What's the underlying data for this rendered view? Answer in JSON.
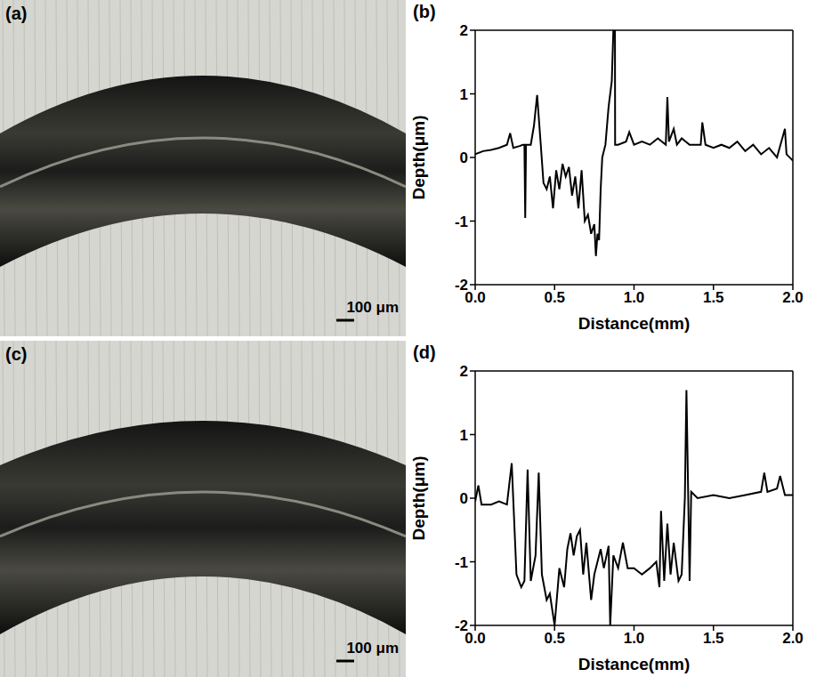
{
  "images": [
    {
      "label": "(a)",
      "scale_bar": "100 μm"
    },
    {
      "label": "(c)",
      "scale_bar": "100 μm"
    }
  ],
  "chart_data": [
    {
      "label": "(b)",
      "type": "line",
      "color": "#000000",
      "xlabel": "Distance(mm)",
      "ylabel": "Depth(μm)",
      "xlim": [
        0,
        2
      ],
      "ylim": [
        -2,
        2
      ],
      "xticks": [
        {
          "value": 0,
          "label": "0.0"
        },
        {
          "value": 0.5,
          "label": "0.5"
        },
        {
          "value": 1,
          "label": "1.0"
        },
        {
          "value": 1.5,
          "label": "1.5"
        },
        {
          "value": 2,
          "label": "2.0"
        }
      ],
      "yticks": [
        -2,
        -1,
        0,
        1,
        2
      ],
      "x": [
        0.0,
        0.05,
        0.1,
        0.15,
        0.2,
        0.22,
        0.24,
        0.28,
        0.3,
        0.31,
        0.315,
        0.32,
        0.35,
        0.37,
        0.39,
        0.41,
        0.43,
        0.45,
        0.47,
        0.49,
        0.51,
        0.53,
        0.55,
        0.57,
        0.59,
        0.61,
        0.63,
        0.65,
        0.67,
        0.69,
        0.71,
        0.73,
        0.75,
        0.76,
        0.77,
        0.78,
        0.79,
        0.8,
        0.82,
        0.84,
        0.86,
        0.87,
        0.88,
        0.881,
        0.9,
        0.95,
        0.97,
        1.0,
        1.05,
        1.1,
        1.15,
        1.2,
        1.21,
        1.22,
        1.25,
        1.27,
        1.3,
        1.35,
        1.42,
        1.43,
        1.45,
        1.5,
        1.55,
        1.6,
        1.65,
        1.7,
        1.75,
        1.8,
        1.85,
        1.9,
        1.95,
        1.96,
        2.0
      ],
      "values": [
        0.05,
        0.1,
        0.12,
        0.15,
        0.2,
        0.38,
        0.15,
        0.18,
        0.2,
        0.2,
        -0.95,
        0.2,
        0.2,
        0.5,
        0.98,
        0.3,
        -0.4,
        -0.5,
        -0.3,
        -0.8,
        -0.2,
        -0.5,
        -0.1,
        -0.3,
        -0.15,
        -0.6,
        -0.3,
        -0.8,
        -0.2,
        -1.0,
        -0.9,
        -1.2,
        -1.05,
        -1.55,
        -1.2,
        -1.3,
        -0.5,
        0.0,
        0.2,
        0.8,
        1.2,
        2.0,
        2.0,
        0.2,
        0.2,
        0.25,
        0.4,
        0.2,
        0.25,
        0.2,
        0.3,
        0.2,
        0.95,
        0.25,
        0.45,
        0.2,
        0.3,
        0.2,
        0.2,
        0.55,
        0.2,
        0.15,
        0.2,
        0.15,
        0.25,
        0.1,
        0.2,
        0.05,
        0.15,
        0.0,
        0.45,
        0.05,
        -0.05
      ]
    },
    {
      "label": "(d)",
      "type": "line",
      "color": "#000000",
      "xlabel": "Distance(mm)",
      "ylabel": "Depth(μm)",
      "xlim": [
        0,
        2
      ],
      "ylim": [
        -2,
        2
      ],
      "xticks": [
        {
          "value": 0,
          "label": "0.0"
        },
        {
          "value": 0.5,
          "label": "0.5"
        },
        {
          "value": 1,
          "label": "1.0"
        },
        {
          "value": 1.5,
          "label": "1.5"
        },
        {
          "value": 2,
          "label": "2.0"
        }
      ],
      "yticks": [
        -2,
        -1,
        0,
        1,
        2
      ],
      "x": [
        0.0,
        0.02,
        0.04,
        0.1,
        0.15,
        0.2,
        0.23,
        0.26,
        0.29,
        0.31,
        0.33,
        0.35,
        0.38,
        0.4,
        0.42,
        0.45,
        0.47,
        0.5,
        0.53,
        0.56,
        0.58,
        0.6,
        0.62,
        0.64,
        0.66,
        0.68,
        0.7,
        0.73,
        0.75,
        0.77,
        0.79,
        0.81,
        0.84,
        0.85,
        0.87,
        0.9,
        0.93,
        0.96,
        1.0,
        1.05,
        1.1,
        1.14,
        1.16,
        1.17,
        1.19,
        1.21,
        1.23,
        1.25,
        1.28,
        1.3,
        1.32,
        1.33,
        1.35,
        1.36,
        1.4,
        1.5,
        1.6,
        1.7,
        1.8,
        1.82,
        1.84,
        1.9,
        1.92,
        1.95,
        2.0
      ],
      "values": [
        -0.05,
        0.2,
        -0.1,
        -0.1,
        -0.05,
        -0.1,
        0.55,
        -1.2,
        -1.4,
        -1.3,
        0.45,
        -1.3,
        -0.9,
        0.4,
        -1.2,
        -1.6,
        -1.5,
        -2.0,
        -1.1,
        -1.4,
        -0.8,
        -0.55,
        -0.9,
        -0.6,
        -0.5,
        -1.2,
        -0.7,
        -1.6,
        -1.2,
        -1.0,
        -0.8,
        -1.1,
        -0.75,
        -2.0,
        -0.9,
        -1.1,
        -0.7,
        -1.1,
        -1.1,
        -1.2,
        -1.1,
        -1.0,
        -1.4,
        -0.2,
        -1.3,
        -0.4,
        -1.2,
        -0.7,
        -1.3,
        -1.2,
        0.0,
        1.7,
        -1.3,
        0.1,
        0.0,
        0.05,
        0.0,
        0.05,
        0.1,
        0.4,
        0.1,
        0.15,
        0.35,
        0.05,
        0.05
      ]
    }
  ]
}
